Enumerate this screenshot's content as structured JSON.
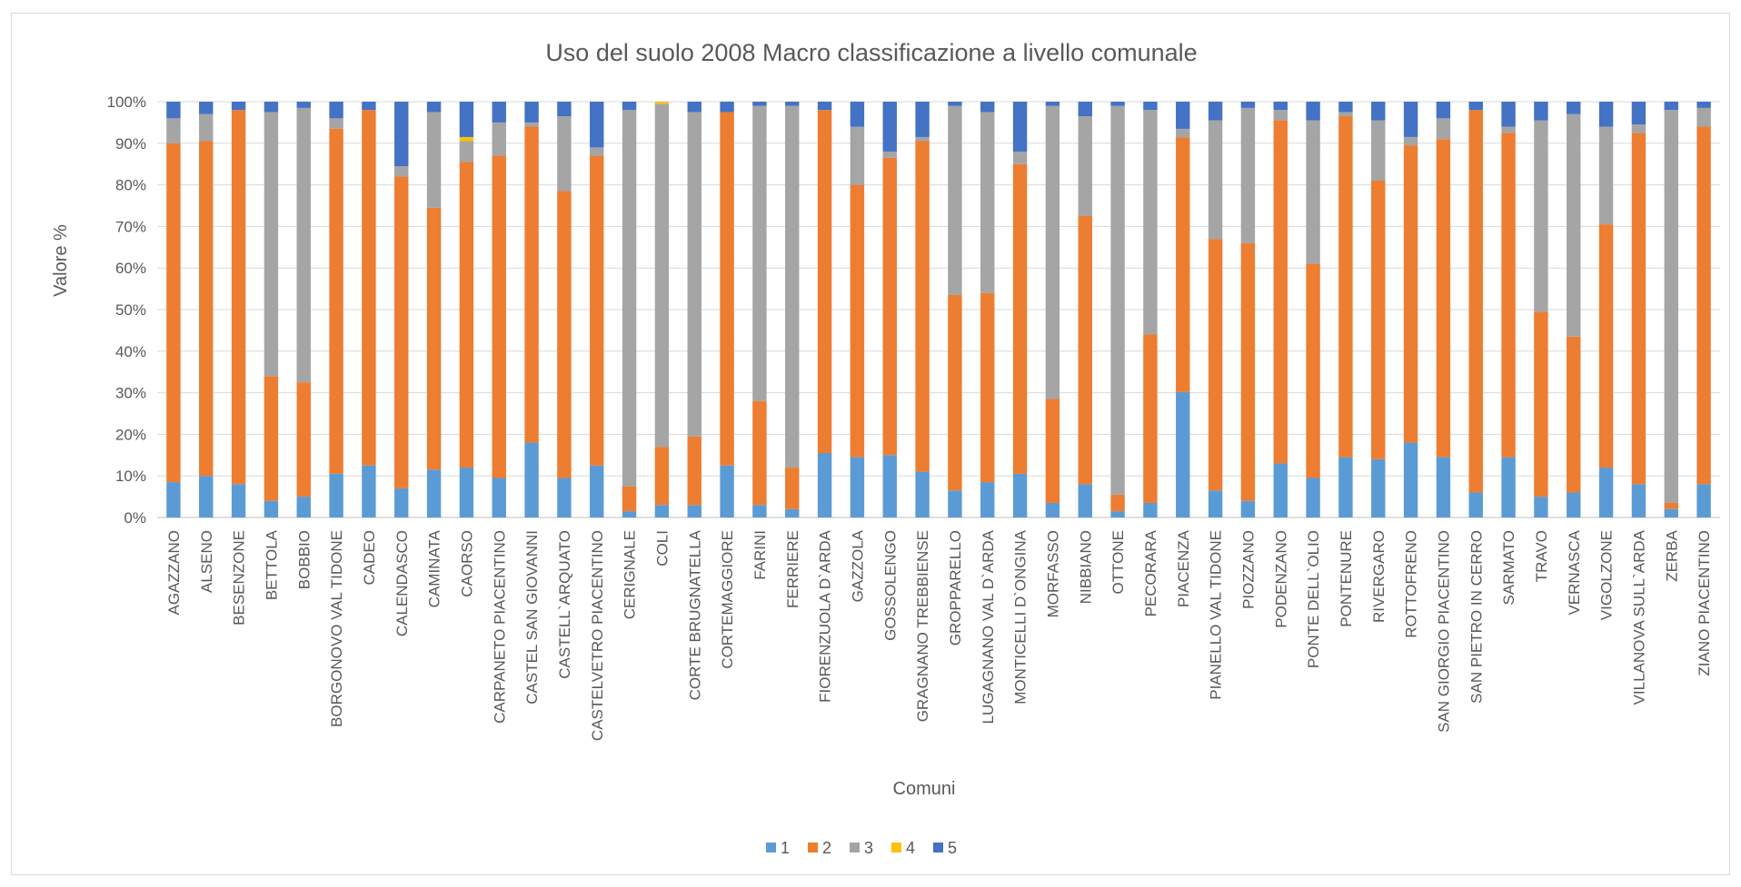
{
  "chart_data": {
    "type": "bar",
    "stacked": "percent",
    "title": "Uso del suolo 2008 Macro classificazione a livello comunale",
    "xlabel": "Comuni",
    "ylabel": "Valore %",
    "ylim": [
      0,
      100
    ],
    "y_ticks": [
      "0%",
      "10%",
      "20%",
      "30%",
      "40%",
      "50%",
      "60%",
      "70%",
      "80%",
      "90%",
      "100%"
    ],
    "grid": true,
    "legend_position": "bottom",
    "categories": [
      "AGAZZANO",
      "ALSENO",
      "BESENZONE",
      "BETTOLA",
      "BOBBIO",
      "BORGONOVO VAL TIDONE",
      "CADEO",
      "CALENDASCO",
      "CAMINATA",
      "CAORSO",
      "CARPANETO PIACENTINO",
      "CASTEL SAN GIOVANNI",
      "CASTELL`ARQUATO",
      "CASTELVETRO PIACENTINO",
      "CERIGNALE",
      "COLI",
      "CORTE BRUGNATELLA",
      "CORTEMAGGIORE",
      "FARINI",
      "FERRIERE",
      "FIORENZUOLA D`ARDA",
      "GAZZOLA",
      "GOSSOLENGO",
      "GRAGNANO TREBBIENSE",
      "GROPPARELLO",
      "LUGAGNANO VAL D`ARDA",
      "MONTICELLI D`ONGINA",
      "MORFASSO",
      "NIBBIANO",
      "OTTONE",
      "PECORARA",
      "PIACENZA",
      "PIANELLO VAL TIDONE",
      "PIOZZANO",
      "PODENZANO",
      "PONTE DELL`OLIO",
      "PONTENURE",
      "RIVERGARO",
      "ROTTOFRENO",
      "SAN GIORGIO PIACENTINO",
      "SAN PIETRO IN CERRO",
      "SARMATO",
      "TRAVO",
      "VERNASCA",
      "VIGOLZONE",
      "VILLANOVA SULL`ARDA",
      "ZERBA",
      "ZIANO PIACENTINO"
    ],
    "series": [
      {
        "name": "1",
        "color": "#5B9BD5",
        "values": [
          8.5,
          10,
          8,
          4,
          5,
          10.5,
          12.5,
          7,
          11.5,
          12,
          9.5,
          18,
          9.5,
          12.5,
          1.5,
          3,
          3,
          12.5,
          3,
          2,
          15.5,
          14.5,
          15,
          11,
          6.5,
          8.5,
          10.5,
          3.5,
          8,
          1.5,
          3.5,
          30,
          6.5,
          4,
          13,
          9.5,
          14.5,
          14,
          18,
          14.5,
          6,
          14.5,
          5,
          6,
          12,
          8,
          2,
          8
        ]
      },
      {
        "name": "2",
        "color": "#ED7D31",
        "values": [
          81.5,
          80.5,
          90,
          30,
          27.5,
          83,
          85.5,
          75,
          63,
          73.5,
          77.5,
          76,
          69,
          74.5,
          6,
          14,
          16.5,
          85,
          25,
          10,
          82.5,
          65.5,
          71.5,
          79.5,
          47,
          45.5,
          74.5,
          25,
          64.5,
          4,
          40.5,
          61,
          60.5,
          62,
          82.5,
          51.5,
          82,
          67,
          71.5,
          76.5,
          92,
          78,
          44.5,
          37.5,
          58.5,
          84.5,
          1.5,
          86
        ]
      },
      {
        "name": "3",
        "color": "#A5A5A5",
        "values": [
          6,
          6.5,
          0,
          63.5,
          66,
          2.5,
          0,
          2.5,
          23,
          5,
          8,
          1,
          18,
          2,
          90.5,
          82.5,
          78,
          0,
          71,
          87,
          0,
          14,
          1.5,
          1,
          45.5,
          43.5,
          3,
          70.5,
          24,
          93.5,
          54,
          2,
          28.5,
          32.5,
          2.5,
          34.5,
          1,
          14.5,
          2,
          5,
          0,
          1.5,
          46,
          53.5,
          23.5,
          2,
          94.5,
          4.5
        ]
      },
      {
        "name": "4",
        "color": "#FFC000",
        "values": [
          0,
          0,
          0,
          0,
          0,
          0,
          0,
          0,
          0,
          1,
          0,
          0,
          0,
          0,
          0,
          0.5,
          0,
          0,
          0,
          0,
          0,
          0,
          0,
          0,
          0,
          0,
          0,
          0,
          0,
          0,
          0,
          0,
          0,
          0,
          0,
          0,
          0,
          0,
          0,
          0,
          0,
          0,
          0,
          0,
          0,
          0,
          0,
          0
        ]
      },
      {
        "name": "5",
        "color": "#4472C4",
        "values": [
          4,
          3,
          2,
          2.5,
          1.5,
          4,
          2,
          15.5,
          2.5,
          8.5,
          5,
          5,
          3.5,
          11,
          2,
          0,
          2.5,
          2.5,
          1,
          1,
          2,
          6,
          12,
          8.5,
          1,
          2.5,
          12,
          1,
          3.5,
          1,
          2,
          6.5,
          4.5,
          1.5,
          2,
          4.5,
          2.5,
          4.5,
          8.5,
          4,
          2,
          6,
          4.5,
          3,
          6,
          5.5,
          2,
          1.5
        ]
      }
    ]
  }
}
